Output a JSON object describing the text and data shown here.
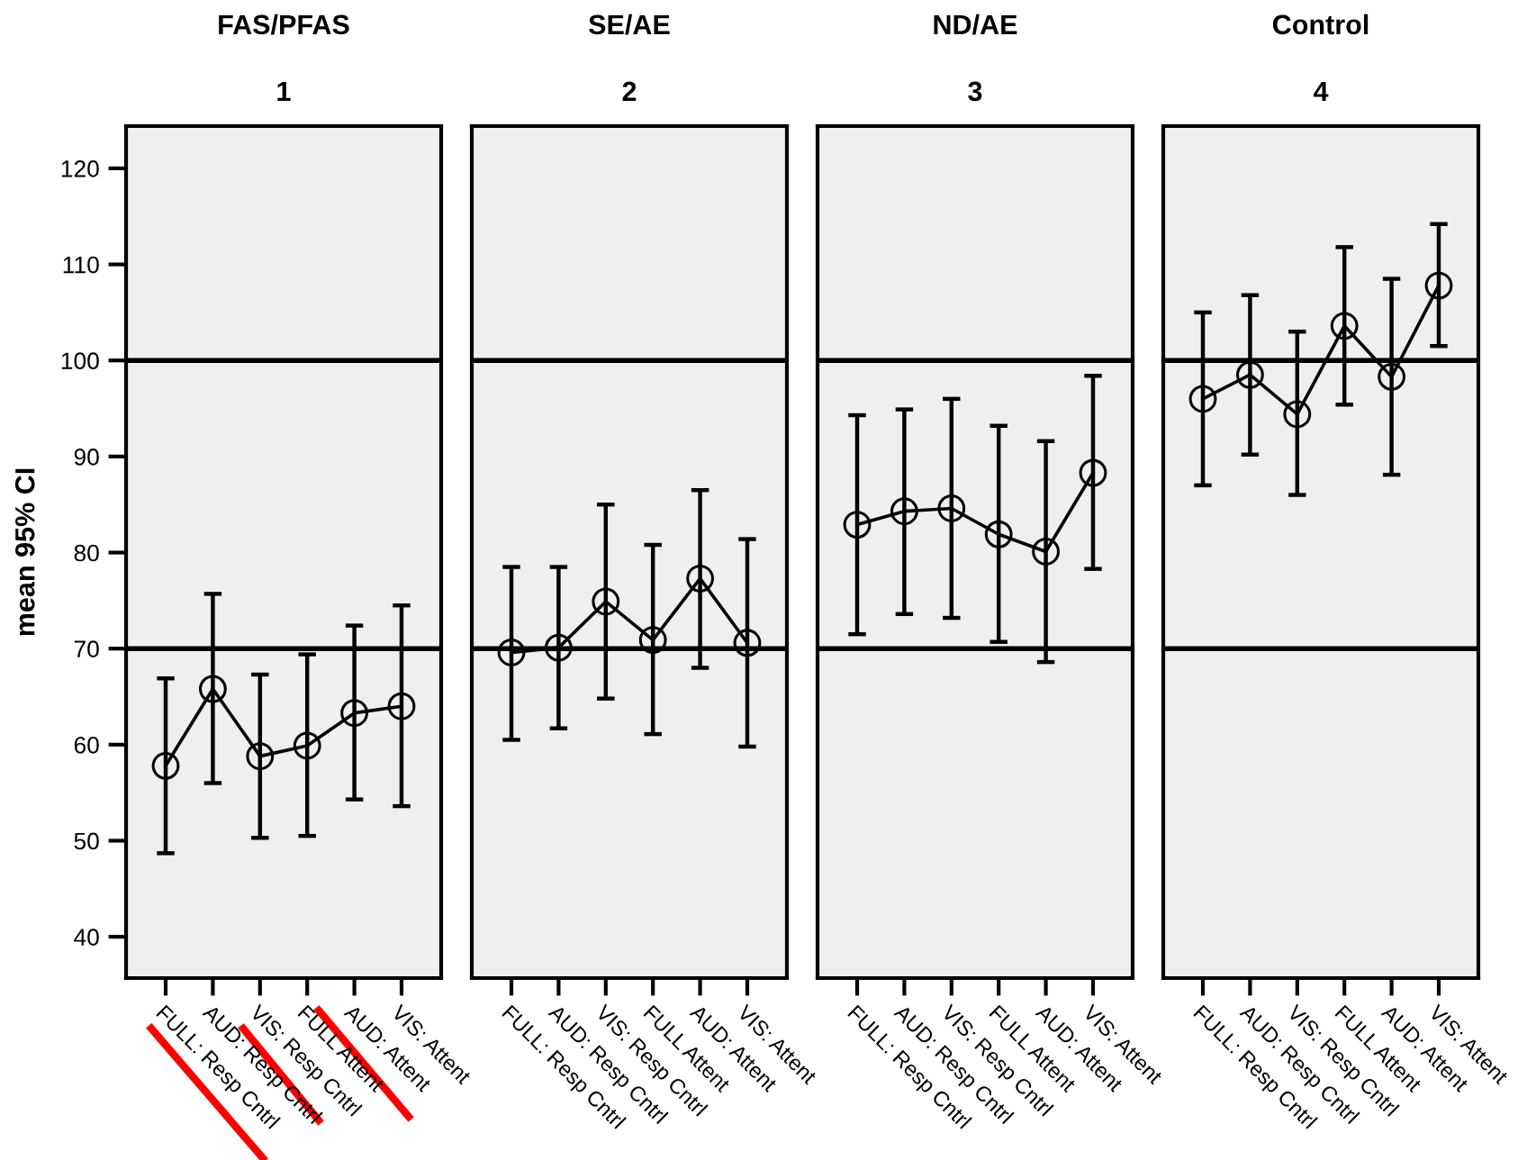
{
  "chart_data": [
    {
      "type": "line",
      "title": "FAS/PFAS",
      "subtitle": "1",
      "ylabel": "mean 95% CI",
      "categories": [
        "FULL: Resp Cntrl",
        "AUD: Resp Cntrl",
        "VIS: Resp Cntrl",
        "FULL Attent",
        "AUD: Attent",
        "VIS: Attent"
      ],
      "series": [
        {
          "color": "#000000",
          "values": [
            57.8,
            65.8,
            58.8,
            59.9,
            63.3,
            64.0
          ],
          "errors": [
            [
              48.7,
              66.9
            ],
            [
              56.0,
              75.7
            ],
            [
              50.3,
              67.3
            ],
            [
              50.5,
              69.4
            ],
            [
              54.3,
              72.4
            ],
            [
              53.6,
              74.5
            ]
          ]
        }
      ],
      "ylim": [
        35.7,
        124.4
      ],
      "yticks": [
        40,
        50,
        60,
        70,
        80,
        90,
        100,
        110,
        120
      ],
      "ref_lines": [
        {
          "axis": "y",
          "value": 70,
          "color": "#000000"
        },
        {
          "axis": "y",
          "value": 100,
          "color": "#000000"
        }
      ],
      "marker": "circle",
      "grid": false,
      "legend": false
    },
    {
      "type": "line",
      "title": "SE/AE",
      "subtitle": "2",
      "categories": [
        "FULL: Resp Cntrl",
        "AUD: Resp Cntrl",
        "VIS: Resp Cntrl",
        "FULL Attent",
        "AUD: Attent",
        "VIS: Attent"
      ],
      "series": [
        {
          "color": "#000000",
          "values": [
            69.6,
            70.1,
            74.9,
            70.9,
            77.3,
            70.6
          ],
          "errors": [
            [
              60.5,
              78.5
            ],
            [
              61.7,
              78.5
            ],
            [
              64.8,
              85.0
            ],
            [
              61.1,
              80.8
            ],
            [
              68.0,
              86.5
            ],
            [
              59.8,
              81.4
            ]
          ]
        }
      ],
      "ylim": [
        35.7,
        124.4
      ],
      "yticks": [
        40,
        50,
        60,
        70,
        80,
        90,
        100,
        110,
        120
      ],
      "tick_labels": "x",
      "ref_lines": [
        {
          "axis": "y",
          "value": 70,
          "color": "#000000"
        },
        {
          "axis": "y",
          "value": 100,
          "color": "#000000"
        }
      ],
      "marker": "circle",
      "grid": false,
      "legend": false
    },
    {
      "type": "line",
      "title": "ND/AE",
      "subtitle": "3",
      "categories": [
        "FULL: Resp Cntrl",
        "AUD: Resp Cntrl",
        "VIS: Resp Cntrl",
        "FULL Attent",
        "AUD: Attent",
        "VIS: Attent"
      ],
      "series": [
        {
          "color": "#000000",
          "values": [
            82.9,
            84.3,
            84.6,
            81.9,
            80.1,
            88.3
          ],
          "errors": [
            [
              71.5,
              94.3
            ],
            [
              73.6,
              94.9
            ],
            [
              73.2,
              96.0
            ],
            [
              70.7,
              93.2
            ],
            [
              68.6,
              91.6
            ],
            [
              78.3,
              98.4
            ]
          ]
        }
      ],
      "ylim": [
        35.7,
        124.4
      ],
      "yticks": [
        40,
        50,
        60,
        70,
        80,
        90,
        100,
        110,
        120
      ],
      "tick_labels": "x",
      "ref_lines": [
        {
          "axis": "y",
          "value": 70,
          "color": "#000000"
        },
        {
          "axis": "y",
          "value": 100,
          "color": "#000000"
        }
      ],
      "marker": "circle",
      "grid": false,
      "legend": false
    },
    {
      "type": "line",
      "title": "Control",
      "subtitle": "4",
      "categories": [
        "FULL: Resp Cntrl",
        "AUD: Resp Cntrl",
        "VIS: Resp Cntrl",
        "FULL Attent",
        "AUD: Attent",
        "VIS: Attent"
      ],
      "series": [
        {
          "color": "#000000",
          "values": [
            96.0,
            98.5,
            94.4,
            103.6,
            98.3,
            107.8
          ],
          "errors": [
            [
              87.0,
              105.0
            ],
            [
              90.2,
              106.8
            ],
            [
              86.0,
              103.0
            ],
            [
              95.4,
              111.8
            ],
            [
              88.1,
              108.5
            ],
            [
              101.5,
              114.2
            ]
          ]
        }
      ],
      "ylim": [
        35.7,
        124.4
      ],
      "yticks": [
        40,
        50,
        60,
        70,
        80,
        90,
        100,
        110,
        120
      ],
      "tick_labels": "x",
      "ref_lines": [
        {
          "axis": "y",
          "value": 70,
          "color": "#000000"
        },
        {
          "axis": "y",
          "value": 100,
          "color": "#000000"
        }
      ],
      "marker": "circle",
      "grid": false,
      "legend": false
    }
  ]
}
